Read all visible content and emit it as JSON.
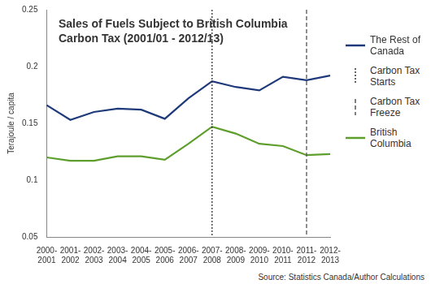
{
  "chart_data": {
    "type": "line",
    "title": "Sales of Fuels Subject to British Columbia Carbon Tax (2001/01 - 2012/13)",
    "y_label": "Terajoule / capita",
    "source": "Source: Statistics Canada/Author Calculations",
    "categories": [
      "2000-2001",
      "2001-2002",
      "2002-2003",
      "2003-2004",
      "2004-2005",
      "2005-2006",
      "2006-2007",
      "2007-2008",
      "2008-2009",
      "2009-2010",
      "2010-2011",
      "2011-2012",
      "2012-2013"
    ],
    "series": [
      {
        "name": "The Rest of Canada",
        "color": "#1f3a7a",
        "values": [
          0.166,
          0.153,
          0.16,
          0.163,
          0.162,
          0.154,
          0.172,
          0.187,
          0.182,
          0.179,
          0.191,
          0.188,
          0.192
        ]
      },
      {
        "name": "British Columbia",
        "color": "#5e9e2c",
        "values": [
          0.12,
          0.117,
          0.117,
          0.121,
          0.121,
          0.118,
          0.132,
          0.147,
          0.141,
          0.132,
          0.13,
          0.122,
          0.123
        ]
      }
    ],
    "annotations": [
      {
        "text": "Carbon Tax Starts",
        "category": "2007-2008",
        "line_style": "dotted",
        "color": "#333333"
      },
      {
        "text": "Carbon Tax Freeze",
        "category": "2011-2012",
        "line_style": "dashed",
        "color": "#555555"
      }
    ],
    "ylim": [
      0.05,
      0.25
    ],
    "yticks": [
      0.05,
      0.1,
      0.15,
      0.2,
      0.25
    ],
    "grid": false,
    "legend": "right"
  }
}
